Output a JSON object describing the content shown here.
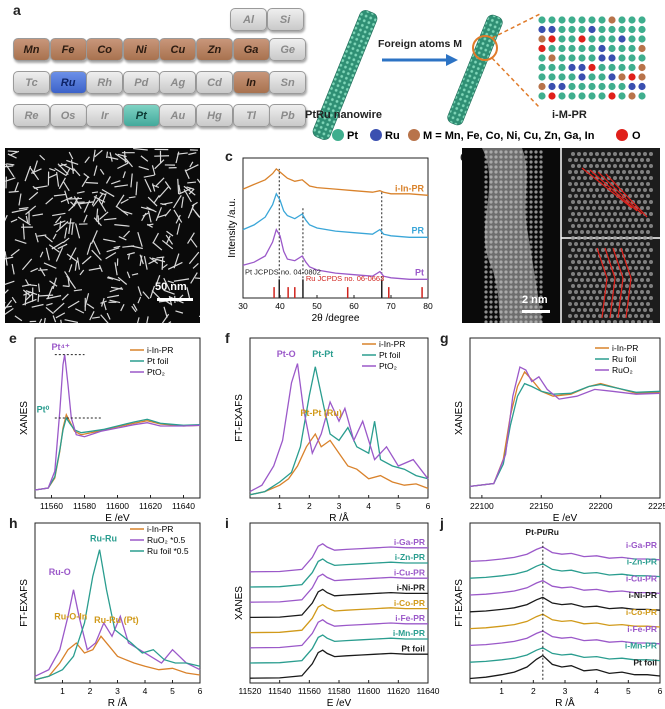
{
  "panel_letters": [
    "a",
    "b",
    "c",
    "d",
    "e",
    "f",
    "g",
    "h",
    "i",
    "j"
  ],
  "periodic": {
    "rows": [
      [
        {
          "s": "Al",
          "t": "grey"
        },
        {
          "s": "Si",
          "t": "grey"
        }
      ],
      [
        {
          "s": "Mn",
          "t": "brown"
        },
        {
          "s": "Fe",
          "t": "brown"
        },
        {
          "s": "Co",
          "t": "brown"
        },
        {
          "s": "Ni",
          "t": "brown"
        },
        {
          "s": "Cu",
          "t": "brown"
        },
        {
          "s": "Zn",
          "t": "brown"
        },
        {
          "s": "Ga",
          "t": "brown"
        },
        {
          "s": "Ge",
          "t": "grey"
        }
      ],
      [
        {
          "s": "Tc",
          "t": "grey"
        },
        {
          "s": "Ru",
          "t": "blue"
        },
        {
          "s": "Rh",
          "t": "grey"
        },
        {
          "s": "Pd",
          "t": "grey"
        },
        {
          "s": "Ag",
          "t": "grey"
        },
        {
          "s": "Cd",
          "t": "grey"
        },
        {
          "s": "In",
          "t": "brown"
        },
        {
          "s": "Sn",
          "t": "grey"
        }
      ],
      [
        {
          "s": "Re",
          "t": "grey"
        },
        {
          "s": "Os",
          "t": "grey"
        },
        {
          "s": "Ir",
          "t": "grey"
        },
        {
          "s": "Pt",
          "t": "teal"
        },
        {
          "s": "Au",
          "t": "grey"
        },
        {
          "s": "Hg",
          "t": "grey"
        },
        {
          "s": "Tl",
          "t": "grey"
        },
        {
          "s": "Pb",
          "t": "grey"
        }
      ]
    ]
  },
  "schematic": {
    "nanowire_label": "PtRu nanowire",
    "arrow_label": "Foreign atoms M",
    "product_label": "i-M-PR",
    "legend": [
      {
        "label": "Pt",
        "color": "#3fae8e"
      },
      {
        "label": "Ru",
        "color": "#3a4fb0"
      },
      {
        "label": "M = Mn, Fe, Co, Ni, Cu, Zn, Ga, In",
        "color": "#b8734a"
      },
      {
        "label": "O",
        "color": "#e0201a"
      }
    ]
  },
  "tem": {
    "scale_b": "50 nm",
    "scale_d": "2 nm"
  },
  "colors": {
    "orange": "#d9822b",
    "blue": "#3aa6d8",
    "purple": "#9b59c9",
    "gold": "#d19a1a",
    "red": "#d0231d",
    "teal": "#2a9d8f",
    "black": "#1a1a1a"
  },
  "chart_data": [
    {
      "panel": "c",
      "type": "line",
      "xlabel": "2θ /degree",
      "ylabel": "Intensity /a.u.",
      "xlim": [
        30,
        80
      ],
      "xticks": [
        30,
        40,
        50,
        60,
        70,
        80
      ],
      "series": [
        {
          "name": "i-In-PR",
          "color": "orange",
          "x": [
            30,
            33,
            36,
            38,
            39,
            40,
            41,
            42,
            44,
            46,
            47,
            48,
            50,
            55,
            60,
            65,
            67,
            68,
            70,
            75,
            80
          ],
          "y": [
            8.6,
            8.9,
            9.2,
            9.6,
            9.9,
            9.7,
            9.5,
            9.3,
            9.1,
            9.2,
            9.0,
            8.8,
            8.7,
            8.6,
            8.5,
            8.4,
            8.5,
            8.4,
            8.3,
            8.3,
            8.2
          ]
        },
        {
          "name": "PR",
          "color": "blue",
          "x": [
            30,
            33,
            36,
            38,
            39,
            40,
            41,
            42,
            44,
            46,
            47,
            48,
            50,
            55,
            60,
            65,
            67,
            68,
            70,
            75,
            80
          ],
          "y": [
            6.0,
            6.3,
            6.8,
            7.6,
            8.3,
            7.9,
            7.2,
            6.9,
            6.7,
            7.0,
            6.6,
            6.3,
            6.1,
            5.9,
            5.8,
            5.7,
            6.0,
            5.7,
            5.6,
            5.5,
            5.5
          ]
        },
        {
          "name": "Pt",
          "color": "purple",
          "x": [
            30,
            33,
            36,
            38,
            39,
            40,
            41,
            42,
            44,
            46,
            47,
            48,
            50,
            55,
            60,
            65,
            67,
            68,
            70,
            75,
            80
          ],
          "y": [
            3.7,
            3.9,
            4.3,
            5.2,
            6.0,
            5.6,
            4.6,
            4.1,
            4.0,
            4.3,
            3.9,
            3.6,
            3.4,
            3.2,
            3.1,
            3.0,
            3.3,
            3.0,
            2.9,
            2.8,
            2.8
          ]
        }
      ],
      "ref_lines": [
        {
          "x": 39.8,
          "from": 2.1,
          "to": 9.9
        },
        {
          "x": 46.2,
          "from": 2.1,
          "to": 7.5
        },
        {
          "x": 67.5,
          "from": 2.1,
          "to": 8.5
        }
      ],
      "pt_sticks": [
        39.8,
        46.2,
        67.5,
        81.3
      ],
      "ru_sticks": [
        38.4,
        42.2,
        44.0,
        58.3,
        69.4,
        78.4
      ],
      "annotations": [
        "Pt  JCPDS no. 04-0802",
        "Ru  JCPDS no. 06-0663"
      ]
    },
    {
      "panel": "e",
      "type": "line",
      "xlabel": "E /eV",
      "ylabel": "XANES",
      "xlim": [
        11550,
        11650
      ],
      "xticks": [
        11560,
        11580,
        11600,
        11620,
        11640
      ],
      "series": [
        {
          "name": "i-In-PR",
          "color": "orange",
          "x": [
            11550,
            11558,
            11562,
            11565,
            11567,
            11569,
            11571,
            11574,
            11578,
            11584,
            11592,
            11600,
            11610,
            11618,
            11626,
            11640,
            11650
          ],
          "y": [
            0.02,
            0.05,
            0.2,
            0.6,
            0.95,
            1.15,
            1.05,
            0.9,
            0.85,
            0.88,
            0.92,
            0.97,
            1.02,
            1.06,
            1.01,
            0.98,
            0.99
          ]
        },
        {
          "name": "Pt foil",
          "color": "teal",
          "x": [
            11550,
            11558,
            11562,
            11565,
            11567,
            11569,
            11571,
            11574,
            11578,
            11584,
            11592,
            11600,
            11610,
            11618,
            11626,
            11640,
            11650
          ],
          "y": [
            0.02,
            0.05,
            0.22,
            0.62,
            0.92,
            1.1,
            1.02,
            0.92,
            0.88,
            0.9,
            0.93,
            0.98,
            1.04,
            1.08,
            1.02,
            0.99,
            1.0
          ]
        },
        {
          "name": "PtO2",
          "color": "purple",
          "x": [
            11550,
            11558,
            11562,
            11565,
            11567,
            11568,
            11570,
            11572,
            11575,
            11580,
            11590,
            11600,
            11610,
            11618,
            11626,
            11640,
            11650
          ],
          "y": [
            0.02,
            0.05,
            0.3,
            1.2,
            1.9,
            2.05,
            1.6,
            1.1,
            0.85,
            0.82,
            0.9,
            0.95,
            1.0,
            1.03,
            0.98,
            0.98,
            0.99
          ]
        }
      ],
      "annotations": [
        "Pt⁴⁺",
        "Pt⁰"
      ]
    },
    {
      "panel": "f",
      "type": "line",
      "xlabel": "R /Å",
      "ylabel": "FT-EXAFS",
      "xlim": [
        0,
        6
      ],
      "xticks": [
        1,
        2,
        3,
        4,
        5,
        6
      ],
      "series": [
        {
          "name": "i-In-PR",
          "color": "orange",
          "x": [
            0,
            0.5,
            1.0,
            1.3,
            1.6,
            1.9,
            2.2,
            2.4,
            2.7,
            3.0,
            3.3,
            3.6,
            4.0,
            4.4,
            4.8,
            5.2,
            5.6,
            6.0
          ],
          "y": [
            0.05,
            0.1,
            0.2,
            0.3,
            0.5,
            0.8,
            1.0,
            0.8,
            0.9,
            0.7,
            0.5,
            0.45,
            0.3,
            0.35,
            0.25,
            0.2,
            0.22,
            0.15
          ]
        },
        {
          "name": "Pt foil",
          "color": "teal",
          "x": [
            0,
            0.5,
            1.0,
            1.4,
            1.7,
            2.0,
            2.2,
            2.5,
            2.7,
            3.0,
            3.3,
            3.6,
            4.0,
            4.2,
            4.4,
            4.8,
            5.2,
            5.6,
            6.0
          ],
          "y": [
            0.05,
            0.1,
            0.25,
            0.4,
            0.8,
            1.6,
            2.05,
            1.4,
            1.0,
            0.9,
            1.1,
            0.8,
            0.7,
            1.2,
            0.6,
            0.5,
            0.45,
            0.35,
            0.3
          ]
        },
        {
          "name": "PtO2",
          "color": "purple",
          "x": [
            0,
            0.4,
            0.8,
            1.1,
            1.4,
            1.6,
            1.8,
            2.1,
            2.4,
            2.7,
            3.0,
            3.2,
            3.5,
            3.8,
            4.2,
            4.6,
            5.0,
            5.5,
            6.0
          ],
          "y": [
            0.1,
            0.2,
            0.5,
            0.9,
            1.8,
            2.1,
            1.4,
            0.7,
            1.0,
            1.5,
            1.2,
            1.4,
            0.9,
            1.2,
            0.6,
            0.8,
            0.5,
            0.6,
            0.3
          ]
        }
      ],
      "annotations": [
        "Pt-O",
        "Pt-Pt",
        "Pt-Pt (Ru)"
      ]
    },
    {
      "panel": "g",
      "type": "line",
      "xlabel": "E /eV",
      "ylabel": "XANES",
      "xlim": [
        22090,
        22250
      ],
      "xticks": [
        22100,
        22150,
        22200,
        22250
      ],
      "series": [
        {
          "name": "i-In-PR",
          "color": "orange",
          "x": [
            22090,
            22110,
            22118,
            22124,
            22130,
            22136,
            22142,
            22150,
            22160,
            22175,
            22190,
            22200,
            22215,
            22230,
            22250
          ],
          "y": [
            0.02,
            0.05,
            0.3,
            0.75,
            1.05,
            1.2,
            1.12,
            1.0,
            0.95,
            0.97,
            1.05,
            1.08,
            1.03,
            0.98,
            0.99
          ]
        },
        {
          "name": "Ru foil",
          "color": "teal",
          "x": [
            22090,
            22110,
            22118,
            22124,
            22130,
            22136,
            22142,
            22150,
            22160,
            22175,
            22190,
            22200,
            22215,
            22230,
            22250
          ],
          "y": [
            0.02,
            0.05,
            0.25,
            0.65,
            0.95,
            1.08,
            1.05,
            1.0,
            0.97,
            0.98,
            1.05,
            1.07,
            1.03,
            0.99,
            1.0
          ]
        },
        {
          "name": "RuO₂",
          "color": "purple",
          "x": [
            22090,
            22110,
            22120,
            22126,
            22132,
            22137,
            22142,
            22148,
            22155,
            22165,
            22180,
            22195,
            22210,
            22230,
            22250
          ],
          "y": [
            0.02,
            0.05,
            0.35,
            0.95,
            1.25,
            1.22,
            1.1,
            1.15,
            1.02,
            0.92,
            0.95,
            1.02,
            1.0,
            0.97,
            0.98
          ]
        }
      ]
    },
    {
      "panel": "h",
      "type": "line",
      "xlabel": "R /Å",
      "ylabel": "FT-EXAFS",
      "xlim": [
        0,
        6
      ],
      "xticks": [
        1,
        2,
        3,
        4,
        5,
        6
      ],
      "series": [
        {
          "name": "i-In-PR",
          "color": "orange",
          "x": [
            0,
            0.5,
            0.9,
            1.2,
            1.5,
            1.8,
            2.1,
            2.4,
            2.7,
            3.0,
            3.3,
            3.6,
            4.0,
            4.5,
            5.0,
            5.5,
            6.0
          ],
          "y": [
            0.05,
            0.1,
            0.3,
            0.5,
            0.6,
            0.45,
            0.5,
            0.7,
            0.55,
            0.4,
            0.35,
            0.3,
            0.25,
            0.2,
            0.22,
            0.15,
            0.12
          ]
        },
        {
          "name": "RuO₂ *0.5",
          "color": "purple",
          "x": [
            0,
            0.5,
            0.9,
            1.2,
            1.4,
            1.6,
            1.9,
            2.2,
            2.5,
            2.8,
            3.1,
            3.4,
            3.8,
            4.2,
            4.6,
            5.0,
            5.5,
            6.0
          ],
          "y": [
            0.1,
            0.2,
            0.5,
            1.0,
            1.4,
            1.0,
            0.5,
            0.6,
            0.9,
            0.7,
            1.0,
            0.6,
            0.5,
            0.4,
            0.3,
            0.5,
            0.3,
            0.2
          ]
        },
        {
          "name": "Ru foil *0.5",
          "color": "teal",
          "x": [
            0,
            0.5,
            1.0,
            1.4,
            1.8,
            2.1,
            2.35,
            2.6,
            2.9,
            3.2,
            3.5,
            3.9,
            4.3,
            4.7,
            5.1,
            5.5,
            6.0
          ],
          "y": [
            0.05,
            0.1,
            0.2,
            0.4,
            0.9,
            1.6,
            2.0,
            1.4,
            0.8,
            0.7,
            0.6,
            0.45,
            0.5,
            0.35,
            0.3,
            0.3,
            0.25
          ]
        }
      ],
      "annotations": [
        "Ru-O",
        "Ru-Ru",
        "Ru-O-In",
        "Ru-Ru (Pt)"
      ]
    },
    {
      "panel": "i",
      "type": "line",
      "xlabel": "E /eV",
      "ylabel": "XANES",
      "xlim": [
        11520,
        11640
      ],
      "xticks": [
        11520,
        11540,
        11560,
        11580,
        11600,
        11620,
        11640
      ],
      "series_labels": [
        "i-Ga-PR",
        "i-Zn-PR",
        "i-Cu-PR",
        "i-Ni-PR",
        "i-Co-PR",
        "i-Fe-PR",
        "i-Mn-PR",
        "Pt foil"
      ],
      "series_colors": [
        "purple",
        "teal",
        "purple",
        "black",
        "gold",
        "purple",
        "teal",
        "black"
      ]
    },
    {
      "panel": "j",
      "type": "line",
      "xlabel": "R /Å",
      "ylabel": "FT-EXAFS",
      "xlim": [
        0,
        6
      ],
      "xticks": [
        1,
        2,
        3,
        4,
        5,
        6
      ],
      "series_labels": [
        "i-Ga-PR",
        "i-Zn-PR",
        "i-Cu-PR",
        "i-Ni-PR",
        "i-Co-PR",
        "i-Fe-PR",
        "i-Mn-PR",
        "Pt foil"
      ],
      "series_colors": [
        "purple",
        "teal",
        "purple",
        "black",
        "gold",
        "purple",
        "teal",
        "black"
      ],
      "annotations": [
        "Pt-Pt/Ru"
      ]
    }
  ]
}
